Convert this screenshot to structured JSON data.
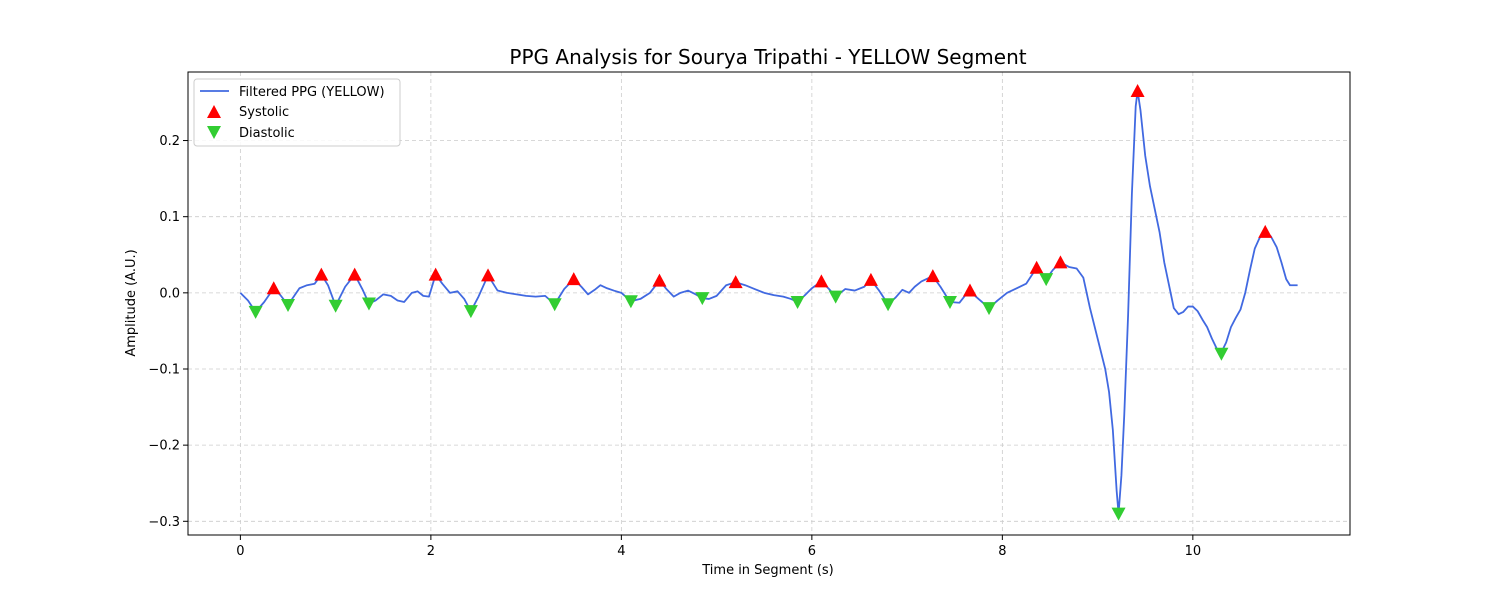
{
  "chart_data": {
    "type": "line",
    "title": "PPG Analysis for Sourya Tripathi - YELLOW Segment",
    "xlabel": "Time in Segment (s)",
    "ylabel": "Amplitude (A.U.)",
    "xlim": [
      -0.55,
      11.65
    ],
    "ylim": [
      -0.318,
      0.29
    ],
    "x_ticks": [
      0,
      2,
      4,
      6,
      8,
      10
    ],
    "x_tick_labels": [
      "0",
      "2",
      "4",
      "6",
      "8",
      "10"
    ],
    "y_ticks": [
      -0.3,
      -0.2,
      -0.1,
      0.0,
      0.1,
      0.2
    ],
    "y_tick_labels": [
      "−0.3",
      "−0.2",
      "−0.1",
      "0.0",
      "0.1",
      "0.2"
    ],
    "grid": true,
    "legend_position": "upper-left",
    "colors": {
      "line": "#4169e1",
      "systolic": "#ff0000",
      "diastolic": "#32cd32",
      "grid": "#cccccc"
    },
    "series": [
      {
        "name": "Filtered PPG (YELLOW)",
        "kind": "line",
        "points": [
          [
            0,
            0.0
          ],
          [
            0.08,
            -0.01
          ],
          [
            0.16,
            -0.025
          ],
          [
            0.25,
            -0.012
          ],
          [
            0.35,
            0.006
          ],
          [
            0.42,
            -0.003
          ],
          [
            0.5,
            -0.016
          ],
          [
            0.56,
            -0.005
          ],
          [
            0.62,
            0.006
          ],
          [
            0.7,
            0.01
          ],
          [
            0.78,
            0.012
          ],
          [
            0.85,
            0.024
          ],
          [
            0.92,
            0.01
          ],
          [
            1.0,
            -0.017
          ],
          [
            1.1,
            0.008
          ],
          [
            1.2,
            0.024
          ],
          [
            1.28,
            0.005
          ],
          [
            1.35,
            -0.014
          ],
          [
            1.42,
            -0.01
          ],
          [
            1.5,
            -0.002
          ],
          [
            1.58,
            -0.004
          ],
          [
            1.65,
            -0.01
          ],
          [
            1.72,
            -0.012
          ],
          [
            1.8,
            0.0
          ],
          [
            1.86,
            0.002
          ],
          [
            1.92,
            -0.004
          ],
          [
            1.98,
            -0.005
          ],
          [
            2.05,
            0.024
          ],
          [
            2.12,
            0.012
          ],
          [
            2.2,
            0.0
          ],
          [
            2.28,
            0.002
          ],
          [
            2.35,
            -0.008
          ],
          [
            2.42,
            -0.024
          ],
          [
            2.5,
            -0.005
          ],
          [
            2.6,
            0.023
          ],
          [
            2.7,
            0.003
          ],
          [
            2.8,
            0.0
          ],
          [
            2.9,
            -0.002
          ],
          [
            3.0,
            -0.004
          ],
          [
            3.1,
            -0.005
          ],
          [
            3.2,
            -0.004
          ],
          [
            3.3,
            -0.015
          ],
          [
            3.4,
            0.005
          ],
          [
            3.5,
            0.018
          ],
          [
            3.58,
            0.008
          ],
          [
            3.65,
            -0.002
          ],
          [
            3.72,
            0.004
          ],
          [
            3.78,
            0.01
          ],
          [
            3.85,
            0.006
          ],
          [
            3.92,
            0.003
          ],
          [
            4.0,
            0.0
          ],
          [
            4.1,
            -0.011
          ],
          [
            4.2,
            -0.008
          ],
          [
            4.3,
            0.0
          ],
          [
            4.4,
            0.016
          ],
          [
            4.48,
            0.004
          ],
          [
            4.55,
            -0.005
          ],
          [
            4.62,
            0.0
          ],
          [
            4.7,
            0.003
          ],
          [
            4.78,
            -0.002
          ],
          [
            4.85,
            -0.007
          ],
          [
            4.92,
            -0.008
          ],
          [
            5.0,
            -0.004
          ],
          [
            5.1,
            0.01
          ],
          [
            5.2,
            0.014
          ],
          [
            5.3,
            0.01
          ],
          [
            5.4,
            0.005
          ],
          [
            5.5,
            0.0
          ],
          [
            5.6,
            -0.003
          ],
          [
            5.7,
            -0.005
          ],
          [
            5.78,
            -0.008
          ],
          [
            5.85,
            -0.012
          ],
          [
            5.92,
            -0.004
          ],
          [
            6.0,
            0.006
          ],
          [
            6.1,
            0.015
          ],
          [
            6.18,
            0.005
          ],
          [
            6.25,
            -0.005
          ],
          [
            6.35,
            0.005
          ],
          [
            6.45,
            0.003
          ],
          [
            6.55,
            0.008
          ],
          [
            6.62,
            0.017
          ],
          [
            6.7,
            0.004
          ],
          [
            6.8,
            -0.015
          ],
          [
            6.88,
            -0.006
          ],
          [
            6.95,
            0.004
          ],
          [
            7.02,
            0.0
          ],
          [
            7.08,
            0.008
          ],
          [
            7.15,
            0.015
          ],
          [
            7.27,
            0.022
          ],
          [
            7.35,
            0.008
          ],
          [
            7.45,
            -0.012
          ],
          [
            7.55,
            -0.013
          ],
          [
            7.65,
            0.003
          ],
          [
            7.75,
            -0.008
          ],
          [
            7.86,
            -0.02
          ],
          [
            7.95,
            -0.01
          ],
          [
            8.05,
            0.0
          ],
          [
            8.15,
            0.006
          ],
          [
            8.25,
            0.012
          ],
          [
            8.36,
            0.033
          ],
          [
            8.46,
            0.018
          ],
          [
            8.53,
            0.03
          ],
          [
            8.61,
            0.04
          ],
          [
            8.7,
            0.034
          ],
          [
            8.78,
            0.032
          ],
          [
            8.85,
            0.02
          ],
          [
            8.92,
            -0.02
          ],
          [
            9.0,
            -0.06
          ],
          [
            9.08,
            -0.1
          ],
          [
            9.12,
            -0.13
          ],
          [
            9.16,
            -0.18
          ],
          [
            9.2,
            -0.26
          ],
          [
            9.22,
            -0.29
          ],
          [
            9.25,
            -0.24
          ],
          [
            9.28,
            -0.16
          ],
          [
            9.32,
            -0.03
          ],
          [
            9.36,
            0.13
          ],
          [
            9.4,
            0.245
          ],
          [
            9.42,
            0.265
          ],
          [
            9.45,
            0.24
          ],
          [
            9.5,
            0.18
          ],
          [
            9.55,
            0.14
          ],
          [
            9.6,
            0.11
          ],
          [
            9.65,
            0.08
          ],
          [
            9.7,
            0.04
          ],
          [
            9.75,
            0.01
          ],
          [
            9.8,
            -0.02
          ],
          [
            9.85,
            -0.028
          ],
          [
            9.9,
            -0.025
          ],
          [
            9.95,
            -0.018
          ],
          [
            10.0,
            -0.018
          ],
          [
            10.05,
            -0.024
          ],
          [
            10.1,
            -0.035
          ],
          [
            10.15,
            -0.045
          ],
          [
            10.2,
            -0.06
          ],
          [
            10.25,
            -0.073
          ],
          [
            10.3,
            -0.078
          ],
          [
            10.35,
            -0.065
          ],
          [
            10.4,
            -0.045
          ],
          [
            10.45,
            -0.033
          ],
          [
            10.5,
            -0.022
          ],
          [
            10.55,
            0.0
          ],
          [
            10.6,
            0.03
          ],
          [
            10.65,
            0.058
          ],
          [
            10.7,
            0.072
          ],
          [
            10.76,
            0.08
          ],
          [
            10.82,
            0.074
          ],
          [
            10.88,
            0.06
          ],
          [
            10.93,
            0.04
          ],
          [
            10.98,
            0.018
          ],
          [
            11.02,
            0.01
          ],
          [
            11.1,
            0.01
          ]
        ]
      },
      {
        "name": "Systolic",
        "kind": "marker-up",
        "points": [
          [
            0.35,
            0.006
          ],
          [
            0.85,
            0.024
          ],
          [
            1.2,
            0.024
          ],
          [
            2.05,
            0.024
          ],
          [
            2.6,
            0.023
          ],
          [
            3.5,
            0.018
          ],
          [
            4.4,
            0.016
          ],
          [
            5.2,
            0.014
          ],
          [
            6.1,
            0.015
          ],
          [
            6.62,
            0.017
          ],
          [
            7.27,
            0.022
          ],
          [
            7.66,
            0.003
          ],
          [
            8.36,
            0.033
          ],
          [
            8.61,
            0.04
          ],
          [
            9.42,
            0.265
          ],
          [
            10.76,
            0.08
          ]
        ]
      },
      {
        "name": "Diastolic",
        "kind": "marker-down",
        "points": [
          [
            0.16,
            -0.025
          ],
          [
            0.5,
            -0.016
          ],
          [
            1.0,
            -0.017
          ],
          [
            1.35,
            -0.014
          ],
          [
            2.42,
            -0.024
          ],
          [
            3.3,
            -0.015
          ],
          [
            4.1,
            -0.011
          ],
          [
            4.85,
            -0.007
          ],
          [
            5.85,
            -0.012
          ],
          [
            6.25,
            -0.005
          ],
          [
            6.8,
            -0.015
          ],
          [
            7.45,
            -0.012
          ],
          [
            7.86,
            -0.02
          ],
          [
            8.46,
            0.018
          ],
          [
            9.22,
            -0.29
          ],
          [
            10.3,
            -0.08
          ]
        ]
      }
    ]
  }
}
